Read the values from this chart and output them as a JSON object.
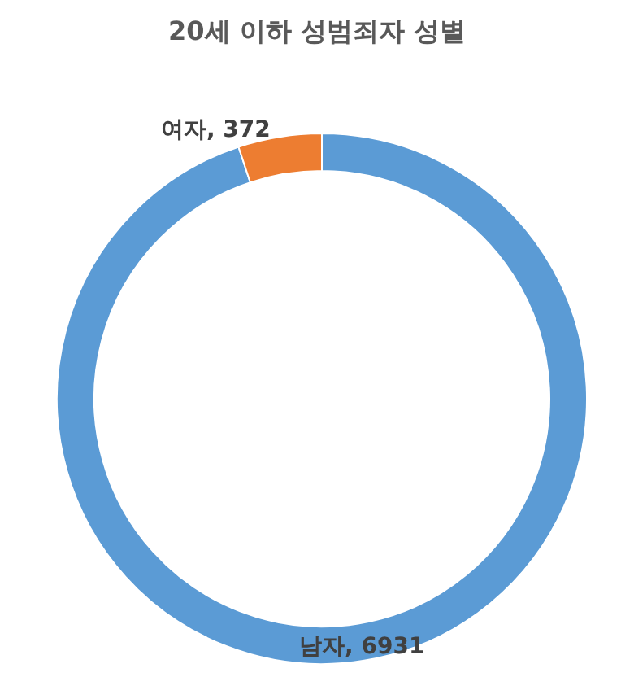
{
  "chart_data": {
    "type": "donut",
    "title": "20세 이하 성범죄자 성별",
    "categories": [
      "남자",
      "여자"
    ],
    "values": [
      6931,
      372
    ],
    "value_labels": [
      ", 6931",
      ", 372"
    ],
    "colors": [
      "#5b9bd5",
      "#ed7d31"
    ]
  }
}
